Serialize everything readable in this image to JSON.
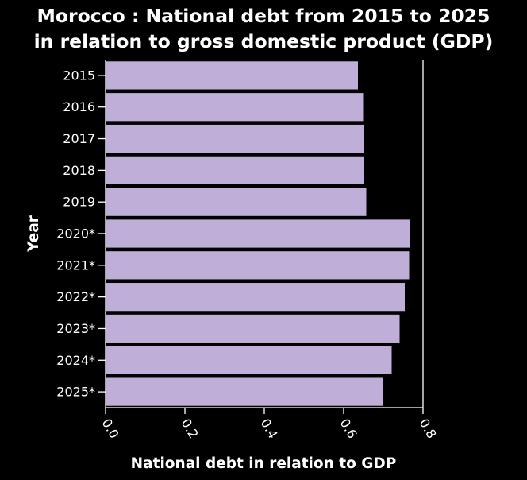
{
  "chart_data": {
    "type": "bar",
    "orientation": "horizontal",
    "title": "Morocco : National debt from 2015 to 2025 in relation to gross domestic product (GDP)",
    "title_lines": [
      "Morocco : National debt from 2015 to 2025",
      "in relation to gross domestic product (GDP)"
    ],
    "xlabel": "National debt in relation to GDP",
    "ylabel": "Year",
    "categories": [
      "2015",
      "2016",
      "2017",
      "2018",
      "2019",
      "2020*",
      "2021*",
      "2022*",
      "2023*",
      "2024*",
      "2025*"
    ],
    "values": [
      0.636,
      0.649,
      0.65,
      0.651,
      0.657,
      0.768,
      0.765,
      0.754,
      0.741,
      0.721,
      0.698
    ],
    "xlim": [
      0,
      0.8
    ],
    "xticks": [
      "0.0",
      "0.2",
      "0.4",
      "0.6",
      "0.8"
    ],
    "xtick_values": [
      0,
      0.2,
      0.4,
      0.6,
      0.8
    ],
    "grid": false,
    "legend": "none",
    "colors": {
      "background": "#000000",
      "plot_background": "#000000",
      "bar": "#bfaed8",
      "axis": "#ffffff",
      "text": "#ffffff"
    }
  }
}
